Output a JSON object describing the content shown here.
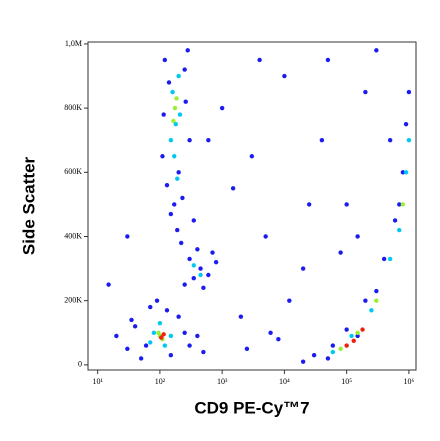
{
  "chart_data": {
    "type": "scatter",
    "xlabel": "CD9 PE-Cy™7",
    "ylabel": "Side Scatter",
    "xscale": "log",
    "grid": false,
    "xlim": [
      7,
      1300000
    ],
    "xticks": [
      {
        "value": 10,
        "label": "10¹"
      },
      {
        "value": 100,
        "label": "10²"
      },
      {
        "value": 1000,
        "label": "10³"
      },
      {
        "value": 10000,
        "label": "10⁴"
      },
      {
        "value": 100000,
        "label": "10⁵"
      },
      {
        "value": 1000000,
        "label": "10⁶"
      }
    ],
    "ylim": [
      -16000,
      1006000
    ],
    "yticks": [
      0,
      {
        "value": 200000,
        "label": "200K"
      },
      {
        "value": 400000,
        "label": "400K"
      },
      {
        "value": 600000,
        "label": "600K"
      },
      {
        "value": 800000,
        "label": "800K"
      },
      {
        "value": 1000000,
        "label": "1,0M"
      }
    ],
    "series": [
      {
        "color": "#1c1cf0",
        "x": [
          120,
          140,
          250,
          300,
          110,
          130,
          230,
          170,
          200,
          260,
          115,
          280,
          150,
          350,
          190,
          300,
          450,
          600,
          250,
          800,
          400,
          500,
          350,
          700,
          220,
          40,
          60,
          200,
          300,
          70,
          30,
          250,
          50,
          150,
          400,
          20,
          90,
          500,
          130,
          35,
          20000,
          30000,
          60000,
          100000,
          200000,
          400000,
          600000,
          800000,
          900000,
          1000000,
          50000,
          150000,
          300000,
          700000,
          1000,
          3000,
          10000,
          50000,
          200000,
          5000,
          20000,
          100000,
          2000,
          8000,
          1500,
          40000,
          300000,
          12000,
          80000,
          600,
          4000,
          30,
          15,
          2500,
          6000,
          500000,
          150000,
          25000
        ],
        "values": [
          950000,
          880000,
          920000,
          700000,
          650000,
          560000,
          520000,
          500000,
          600000,
          820000,
          780000,
          980000,
          470000,
          450000,
          420000,
          330000,
          300000,
          280000,
          250000,
          320000,
          360000,
          240000,
          270000,
          350000,
          380000,
          120000,
          60000,
          150000,
          60000,
          180000,
          50000,
          100000,
          20000,
          30000,
          90000,
          90000,
          200000,
          40000,
          170000,
          140000,
          10000,
          30000,
          60000,
          110000,
          200000,
          330000,
          450000,
          600000,
          750000,
          850000,
          20000,
          90000,
          230000,
          500000,
          800000,
          650000,
          900000,
          950000,
          850000,
          400000,
          300000,
          500000,
          150000,
          80000,
          550000,
          700000,
          980000,
          200000,
          350000,
          700000,
          950000,
          400000,
          250000,
          50000,
          100000,
          700000,
          400000,
          500000
        ]
      },
      {
        "color": "#00c8f0",
        "x": [
          160,
          180,
          200,
          170,
          150,
          210,
          190,
          80,
          120,
          100,
          150,
          70,
          60000,
          120000,
          250000,
          500000,
          700000,
          900000,
          1000000,
          350,
          450
        ],
        "values": [
          850000,
          750000,
          900000,
          650000,
          700000,
          780000,
          580000,
          100000,
          60000,
          130000,
          90000,
          70000,
          40000,
          90000,
          170000,
          330000,
          420000,
          600000,
          700000,
          310000,
          280000
        ]
      },
      {
        "color": "#9af030",
        "x": [
          175,
          185,
          165,
          100,
          110,
          95,
          80000,
          150000,
          300000,
          800000
        ],
        "values": [
          800000,
          830000,
          760000,
          90000,
          80000,
          100000,
          50000,
          100000,
          200000,
          500000
        ]
      },
      {
        "color": "#f02010",
        "x": [
          105,
          115,
          100000,
          180000,
          130000
        ],
        "values": [
          85000,
          95000,
          60000,
          110000,
          75000
        ]
      }
    ]
  }
}
